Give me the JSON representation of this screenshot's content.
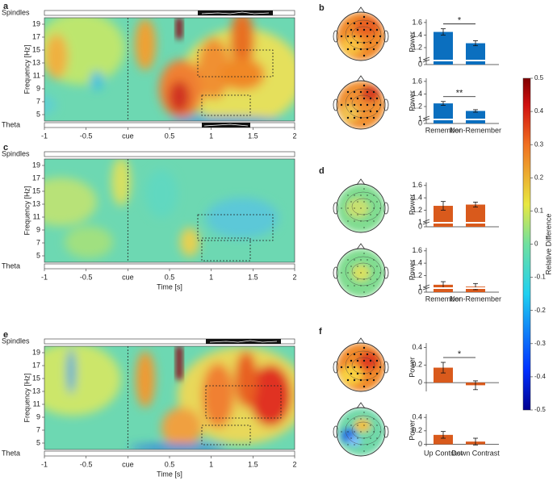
{
  "heatmap_axes": {
    "xlim": [
      -1,
      2
    ],
    "xticks": [
      -1,
      -0.5,
      {
        "value": 0,
        "label": "cue"
      },
      0.5,
      1,
      1.5,
      2
    ],
    "ylim": [
      4,
      20
    ],
    "yticks": [
      5,
      7,
      9,
      11,
      13,
      15,
      17,
      19
    ],
    "ylabel": "Frequency [Hz]",
    "xlabel": "Time [s]",
    "top_band": "Spindles",
    "bottom_band": "Theta"
  },
  "panels": [
    {
      "label": "a"
    },
    {
      "label": "b",
      "categories": [
        "Remember",
        "Non-Remember"
      ],
      "ylabel": "Power",
      "color": "#0b6fbf",
      "axis_break": true,
      "charts": [
        {
          "ylim": [
            0.93,
            1.65
          ],
          "yticks": [
            0,
            1,
            1.2,
            1.4,
            1.6
          ],
          "values": [
            1.45,
            1.27
          ],
          "errors": [
            0.05,
            0.04
          ],
          "significance": "*"
        },
        {
          "ylim": [
            0.93,
            1.65
          ],
          "yticks": [
            0,
            1,
            1.2,
            1.4,
            1.6
          ],
          "values": [
            1.25,
            1.13
          ],
          "errors": [
            0.03,
            0.02
          ],
          "significance": "**"
        }
      ]
    },
    {
      "label": "c"
    },
    {
      "label": "d",
      "categories": [
        "Remember",
        "Non-Remember"
      ],
      "ylabel": "Power",
      "color": "#d95a1c",
      "axis_break": true,
      "charts": [
        {
          "ylim": [
            0.93,
            1.65
          ],
          "yticks": [
            0,
            1,
            1.2,
            1.4,
            1.6
          ],
          "values": [
            1.27,
            1.29
          ],
          "errors": [
            0.07,
            0.04
          ]
        },
        {
          "ylim": [
            0.93,
            1.65
          ],
          "yticks": [
            0,
            1,
            1.2,
            1.4,
            1.6
          ],
          "values": [
            1.05,
            1.02
          ],
          "errors": [
            0.05,
            0.05
          ]
        }
      ]
    },
    {
      "label": "e"
    },
    {
      "label": "f",
      "categories": [
        "Up Contrast",
        "Down Contrast"
      ],
      "ylabel": "Power",
      "color": "#d95a1c",
      "axis_break": false,
      "charts": [
        {
          "ylim": [
            -0.1,
            0.45
          ],
          "yticks": [
            0,
            0.2,
            0.4
          ],
          "values": [
            0.17,
            -0.03
          ],
          "errors": [
            0.06,
            0.05
          ],
          "significance": "*"
        },
        {
          "ylim": [
            -0.03,
            0.45
          ],
          "yticks": [
            0,
            0.2,
            0.4
          ],
          "values": [
            0.14,
            0.04
          ],
          "errors": [
            0.05,
            0.05
          ]
        }
      ]
    }
  ],
  "colorbar": {
    "label": "Relative Difference",
    "lim": [
      -0.5,
      0.5
    ],
    "ticks": [
      0.5,
      0.4,
      0.3,
      0.2,
      0.1,
      0,
      -0.1,
      -0.2,
      -0.3,
      -0.4,
      -0.5
    ]
  }
}
